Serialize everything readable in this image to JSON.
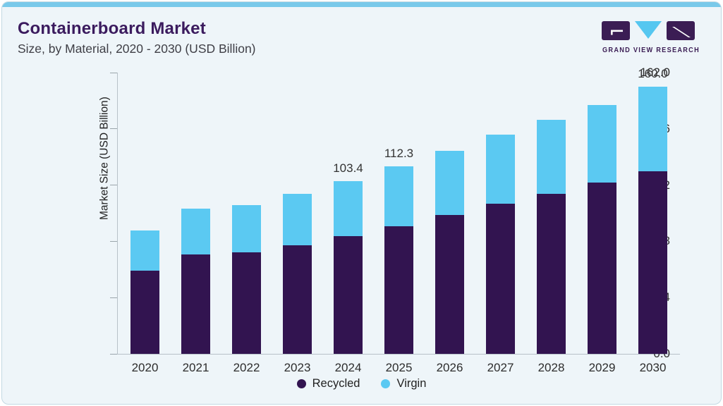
{
  "header": {
    "title": "Containerboard Market",
    "subtitle": "Size, by Material, 2020 - 2030 (USD Billion)"
  },
  "logo": {
    "name": "GRAND VIEW RESEARCH",
    "mark_color": "#3b1d54",
    "triangle_color": "#56c7f0"
  },
  "chart_data": {
    "type": "bar",
    "stacked": true,
    "title": "Containerboard Market Size, by Material, 2020 - 2030 (USD Billion)",
    "categories": [
      "2020",
      "2021",
      "2022",
      "2023",
      "2024",
      "2025",
      "2026",
      "2027",
      "2028",
      "2029",
      "2030"
    ],
    "series": [
      {
        "name": "Recycled",
        "color": "#321450",
        "values": [
          49.8,
          59.5,
          60.8,
          65.0,
          70.5,
          76.4,
          83.2,
          89.9,
          95.8,
          102.6,
          109.3
        ]
      },
      {
        "name": "Virgin",
        "color": "#5bc9f2",
        "values": [
          24.1,
          27.5,
          28.3,
          30.8,
          32.9,
          35.9,
          38.4,
          41.4,
          44.3,
          46.4,
          50.7
        ]
      }
    ],
    "totals": [
      73.9,
      87.0,
      89.1,
      95.8,
      103.4,
      112.3,
      121.6,
      131.3,
      140.1,
      149.0,
      160.0
    ],
    "total_labels": {
      "2024": "103.4",
      "2025": "112.3",
      "2030": "160.0"
    },
    "xlabel": "",
    "ylabel": "Market Size (USD Billion)",
    "yticks": [
      "0.0",
      "32.4",
      "64.8",
      "97.2",
      "129.6",
      "162.0"
    ],
    "ylim": [
      0,
      162
    ],
    "grid": false,
    "legend_position": "bottom"
  },
  "colors": {
    "accent_bar": "#79c9ea",
    "card_bg": "#eef5f9",
    "title_text": "#3b1b5e"
  }
}
